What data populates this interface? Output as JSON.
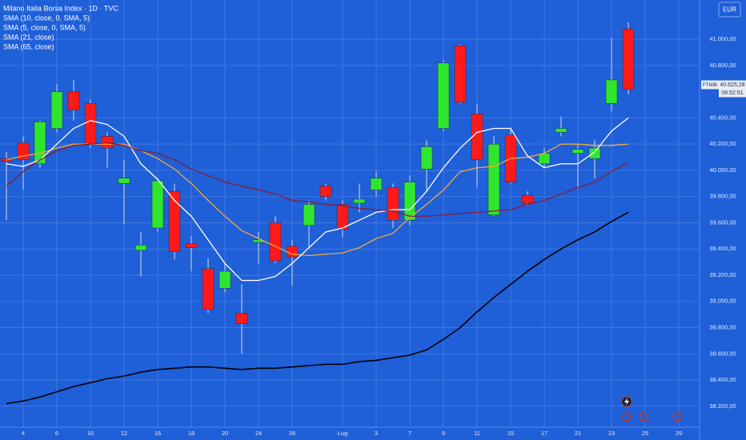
{
  "chart_data": {
    "type": "candlestick",
    "title": "Milano Italia Borsa Index · 1D · TVC",
    "currency": "EUR",
    "symbol": "FTMIB",
    "countdown": "08:52:51",
    "price_label": {
      "value": 40625.28,
      "label": "40.625,28"
    },
    "categories": [
      null,
      "4",
      null,
      "6",
      null,
      "10",
      null,
      "12",
      null,
      "16",
      null,
      "18",
      null,
      "20",
      null,
      "24",
      null,
      "26",
      null,
      null,
      "Lug",
      null,
      "3",
      null,
      "7",
      null,
      "9",
      null,
      "11",
      null,
      "15",
      null,
      "17",
      null,
      "21",
      null,
      "23",
      null,
      "25",
      null,
      "29"
    ],
    "open": [
      40090,
      40210,
      40050,
      40320,
      40600,
      40510,
      40260,
      39900,
      39390,
      39560,
      39840,
      39440,
      39250,
      39100,
      38910,
      39450,
      39600,
      39420,
      39580,
      39880,
      39740,
      39750,
      39850,
      39870,
      39620,
      40010,
      40320,
      40950,
      40430,
      39660,
      40270,
      39810,
      40050,
      40290,
      40130,
      40090,
      40510,
      41080,
      null,
      null,
      null
    ],
    "high": [
      40140,
      40260,
      40380,
      40660,
      40690,
      40540,
      40290,
      40080,
      39530,
      39940,
      39900,
      39500,
      39330,
      39290,
      39130,
      39530,
      39650,
      39470,
      39770,
      39900,
      39770,
      39900,
      39990,
      39900,
      39960,
      40230,
      40840,
      40960,
      40510,
      40260,
      40310,
      39840,
      40170,
      40410,
      40200,
      40230,
      41010,
      41130,
      null,
      null,
      null
    ],
    "low": [
      39620,
      39850,
      40020,
      40290,
      40380,
      40170,
      40020,
      39590,
      39190,
      39530,
      39320,
      39230,
      38910,
      39070,
      38600,
      39290,
      39290,
      39120,
      39410,
      39770,
      39490,
      39680,
      39800,
      39560,
      39580,
      39840,
      40300,
      40510,
      39870,
      39650,
      39900,
      39730,
      40020,
      40260,
      39870,
      39940,
      40450,
      40580,
      null,
      null,
      null
    ],
    "close": [
      40070,
      40080,
      40370,
      40600,
      40460,
      40200,
      40170,
      39940,
      39430,
      39920,
      39380,
      39410,
      38940,
      39230,
      38830,
      39470,
      39310,
      39340,
      39740,
      39800,
      39550,
      39780,
      39940,
      39620,
      39910,
      40180,
      40820,
      40520,
      40080,
      40200,
      39910,
      39750,
      40130,
      40320,
      40160,
      40170,
      40690,
      40620,
      null,
      null,
      null
    ],
    "up_color": "#2fe62f",
    "down_color": "#ff1a1a",
    "wick_color": "#d7dbe6",
    "series": [
      {
        "name": "SMA (10, close, 0, SMA, 5)",
        "color": "#f2a93b",
        "values": [
          40080,
          40110,
          40130,
          40170,
          40200,
          40200,
          40200,
          40200,
          40150,
          40090,
          40010,
          39900,
          39770,
          39650,
          39540,
          39480,
          39420,
          39360,
          39350,
          39360,
          39370,
          39410,
          39480,
          39520,
          39640,
          39740,
          39850,
          39990,
          40020,
          40030,
          40090,
          40100,
          40130,
          40200,
          40200,
          40190,
          40190,
          40200,
          null,
          null,
          null
        ]
      },
      {
        "name": "SMA (5, close, 0, SMA, 5)",
        "color": "#ffffff",
        "values": [
          40050,
          40030,
          40080,
          40200,
          40320,
          40380,
          40350,
          40260,
          40050,
          39930,
          39770,
          39650,
          39470,
          39290,
          39160,
          39160,
          39190,
          39290,
          39410,
          39530,
          39560,
          39620,
          39680,
          39700,
          39700,
          39840,
          40020,
          40170,
          40290,
          40320,
          40320,
          40110,
          40020,
          40050,
          40050,
          40140,
          40300,
          40400,
          null,
          null,
          null
        ]
      },
      {
        "name": "SMA (21, close)",
        "color": "#8a1b32",
        "values": [
          39880,
          39990,
          40080,
          40150,
          40190,
          40200,
          40210,
          40190,
          40150,
          40130,
          40080,
          40010,
          39960,
          39910,
          39880,
          39850,
          39820,
          39770,
          39760,
          39740,
          39730,
          39710,
          39700,
          39690,
          39650,
          39650,
          39660,
          39670,
          39680,
          39690,
          39700,
          39740,
          39770,
          39820,
          39870,
          39910,
          39990,
          40060,
          null,
          null,
          null
        ]
      },
      {
        "name": "SMA (65, close)",
        "color": "#000000",
        "values": [
          38220,
          38240,
          38270,
          38310,
          38350,
          38380,
          38410,
          38430,
          38460,
          38480,
          38490,
          38500,
          38500,
          38490,
          38480,
          38490,
          38490,
          38500,
          38510,
          38520,
          38520,
          38540,
          38550,
          38570,
          38590,
          38630,
          38710,
          38800,
          38920,
          39030,
          39130,
          39230,
          39320,
          39400,
          39470,
          39530,
          39610,
          39680,
          null,
          null,
          null
        ]
      }
    ],
    "ylim": [
      38040,
      41300
    ],
    "yticks": [
      {
        "value": 38200,
        "label": "38.200,00"
      },
      {
        "value": 38400,
        "label": "38.400,00"
      },
      {
        "value": 38600,
        "label": "38.600,00"
      },
      {
        "value": 38800,
        "label": "38.800,00"
      },
      {
        "value": 39000,
        "label": "39.000,00"
      },
      {
        "value": 39200,
        "label": "39.200,00"
      },
      {
        "value": 39400,
        "label": "39.400,00"
      },
      {
        "value": 39600,
        "label": "39.600,00"
      },
      {
        "value": 39800,
        "label": "39.800,00"
      },
      {
        "value": 40000,
        "label": "40.000,00"
      },
      {
        "value": 40200,
        "label": "40.200,00"
      },
      {
        "value": 40400,
        "label": "40.400,00"
      },
      {
        "value": 40800,
        "label": "40.800,00"
      },
      {
        "value": 41000,
        "label": "41.000,00"
      }
    ],
    "grid": true
  }
}
